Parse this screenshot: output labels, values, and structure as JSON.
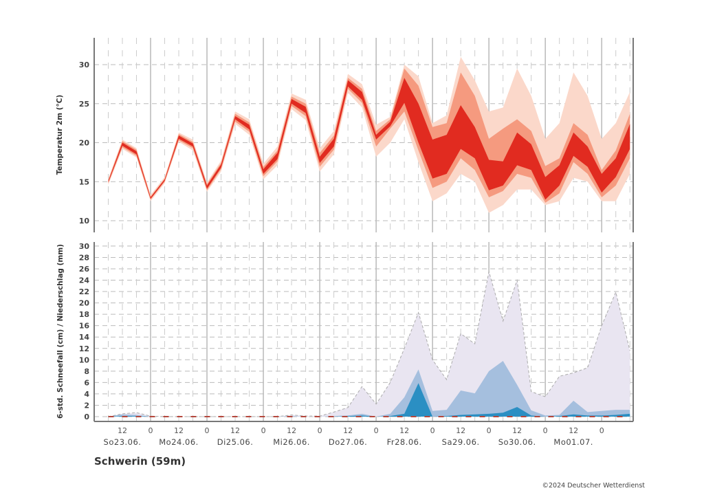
{
  "location_title": "Schwerin (59m)",
  "copyright": "©2024 Deutscher Wetterdienst",
  "chart_data": [
    {
      "type": "area",
      "ylabel": "Temperatur 2m (°C)",
      "ylim": [
        9,
        33
      ],
      "yticks": [
        10,
        15,
        20,
        25,
        30
      ],
      "grid": true,
      "colors": {
        "min_max": "#fbd8ca",
        "p10_p90": "#f59a7f",
        "p25_p75": "#e12b20"
      },
      "x": [
        "2024-06-23T06:00",
        "2024-06-23T12:00",
        "2024-06-23T18:00",
        "2024-06-24T00:00",
        "2024-06-24T06:00",
        "2024-06-24T12:00",
        "2024-06-24T18:00",
        "2024-06-25T00:00",
        "2024-06-25T06:00",
        "2024-06-25T12:00",
        "2024-06-25T18:00",
        "2024-06-26T00:00",
        "2024-06-26T06:00",
        "2024-06-26T12:00",
        "2024-06-26T18:00",
        "2024-06-27T00:00",
        "2024-06-27T06:00",
        "2024-06-27T12:00",
        "2024-06-27T18:00",
        "2024-06-28T00:00",
        "2024-06-28T06:00",
        "2024-06-28T12:00",
        "2024-06-28T18:00",
        "2024-06-29T00:00",
        "2024-06-29T06:00",
        "2024-06-29T12:00",
        "2024-06-29T18:00",
        "2024-06-30T00:00",
        "2024-06-30T06:00",
        "2024-06-30T12:00",
        "2024-06-30T18:00",
        "2024-07-01T00:00",
        "2024-07-01T06:00",
        "2024-07-01T12:00",
        "2024-07-01T18:00",
        "2024-07-02T00:00",
        "2024-07-02T06:00",
        "2024-07-02T12:00"
      ],
      "min": [
        14.6,
        19.2,
        18.1,
        12.5,
        14.8,
        20.1,
        19.0,
        13.7,
        16.3,
        22.4,
        21.0,
        15.3,
        17.1,
        24.3,
        22.9,
        16.3,
        18.5,
        26.4,
        24.5,
        18.2,
        20.0,
        23.0,
        17.5,
        12.5,
        13.5,
        16.0,
        15.0,
        11.0,
        12.0,
        14.0,
        14.0,
        12.0,
        12.5,
        15.5,
        15.0,
        12.5,
        12.5,
        16.0
      ],
      "p10": [
        14.8,
        19.4,
        18.3,
        12.7,
        15.0,
        20.3,
        19.3,
        13.9,
        16.6,
        22.7,
        21.4,
        15.7,
        17.6,
        24.7,
        23.4,
        16.9,
        19.1,
        26.9,
        25.1,
        19.5,
        21.8,
        24.0,
        19.0,
        14.2,
        15.0,
        18.0,
        16.5,
        13.0,
        13.8,
        16.0,
        15.5,
        12.3,
        13.5,
        17.5,
        16.0,
        13.0,
        14.5,
        18.0
      ],
      "p25": [
        14.9,
        19.6,
        18.5,
        12.8,
        15.1,
        20.5,
        19.5,
        14.1,
        16.8,
        23.0,
        21.7,
        16.0,
        17.9,
        25.0,
        23.8,
        17.4,
        19.5,
        27.2,
        25.5,
        20.4,
        22.1,
        25.1,
        20.0,
        15.4,
        16.0,
        19.2,
        18.0,
        13.9,
        14.5,
        17.1,
        16.5,
        12.7,
        14.5,
        18.3,
        16.9,
        13.6,
        15.6,
        19.2
      ],
      "p75": [
        15.1,
        20.0,
        18.9,
        13.0,
        15.3,
        20.9,
        19.9,
        14.5,
        17.2,
        23.4,
        22.3,
        16.6,
        18.7,
        25.6,
        24.6,
        18.2,
        20.5,
        28.0,
        26.5,
        21.0,
        22.7,
        28.3,
        25.0,
        20.4,
        21.0,
        24.8,
        22.0,
        17.8,
        17.6,
        21.3,
        19.8,
        15.6,
        17.1,
        21.3,
        19.5,
        16.0,
        18.0,
        22.4
      ],
      "p90": [
        15.2,
        20.2,
        19.1,
        13.1,
        15.4,
        21.1,
        20.1,
        14.7,
        17.4,
        23.7,
        22.6,
        16.9,
        19.0,
        25.9,
        25.0,
        18.7,
        20.9,
        28.3,
        26.9,
        21.5,
        23.0,
        29.5,
        27.3,
        22.0,
        22.5,
        29.0,
        26.0,
        20.5,
        21.8,
        23.0,
        21.5,
        17.0,
        18.0,
        22.5,
        21.0,
        16.5,
        19.0,
        23.7
      ],
      "max": [
        15.4,
        20.4,
        19.3,
        13.3,
        15.6,
        21.3,
        20.4,
        14.9,
        17.7,
        24.0,
        23.0,
        17.3,
        19.5,
        26.3,
        25.5,
        19.3,
        21.5,
        28.8,
        27.5,
        22.3,
        23.3,
        30.0,
        28.5,
        22.5,
        23.5,
        31.0,
        28.0,
        24.0,
        24.5,
        29.5,
        26.0,
        20.5,
        22.5,
        29.0,
        26.0,
        20.5,
        22.5,
        26.5
      ]
    },
    {
      "type": "area",
      "ylabel": "6-std. Schneefall (cm) / Niederschlag (mm)",
      "ylim": [
        -0.8,
        30.8
      ],
      "yticks": [
        0,
        2,
        4,
        6,
        8,
        10,
        12,
        14,
        16,
        18,
        20,
        22,
        24,
        26,
        28,
        30
      ],
      "grid": true,
      "colors": {
        "max": "#e9e5f1",
        "upper": "#a5bfde",
        "median": "#2b8fc3",
        "snow": "#b5473c"
      },
      "x_ticks": [
        "12",
        "0",
        "12",
        "0",
        "12",
        "0",
        "12",
        "0",
        "12",
        "0",
        "12",
        "0",
        "12",
        "0",
        "12",
        "0",
        "12",
        "0"
      ],
      "day_labels": [
        "So23.06.",
        "Mo24.06.",
        "Di25.06.",
        "Mi26.06.",
        "Do27.06.",
        "Fr28.06.",
        "Sa29.06.",
        "So30.06.",
        "Mo01.07."
      ],
      "max": [
        0,
        0.5,
        0.7,
        0.1,
        0,
        0,
        0,
        0,
        0,
        0,
        0,
        0,
        0,
        0.3,
        0.1,
        0.1,
        0.8,
        1.6,
        5.3,
        2.2,
        6,
        12,
        18.3,
        10,
        6.5,
        14.6,
        12.8,
        25.5,
        16.8,
        24,
        4.4,
        3.5,
        7.1,
        7.7,
        8.6,
        16,
        21.9,
        11.6
      ],
      "upper": [
        0,
        0.4,
        0.3,
        0,
        0,
        0,
        0,
        0,
        0,
        0,
        0,
        0,
        0,
        0.1,
        0,
        0,
        0.1,
        0.2,
        0.5,
        0,
        0.5,
        3.4,
        8.3,
        1,
        1.2,
        4.6,
        4.1,
        8,
        9.8,
        5.6,
        1.1,
        0.2,
        0.3,
        2.8,
        0.8,
        1,
        1.2,
        1.2
      ],
      "median": [
        0,
        0.1,
        0.1,
        0,
        0,
        0,
        0,
        0,
        0,
        0,
        0,
        0,
        0,
        0,
        0,
        0,
        0,
        0.1,
        0.2,
        0,
        0.1,
        0.5,
        5.9,
        0,
        0.1,
        0.3,
        0.4,
        0.5,
        0.7,
        1.7,
        0.2,
        0,
        0.1,
        0.4,
        0.2,
        0.2,
        0.3,
        0.5
      ],
      "snowfall": [
        0,
        0,
        0,
        0,
        0,
        0,
        0,
        0,
        0,
        0,
        0,
        0,
        0,
        0,
        0,
        0,
        0,
        0,
        0,
        0,
        0,
        0,
        0,
        0,
        0,
        0,
        0,
        0,
        0,
        0,
        0,
        0,
        0,
        0,
        0,
        0,
        0,
        0
      ]
    }
  ]
}
